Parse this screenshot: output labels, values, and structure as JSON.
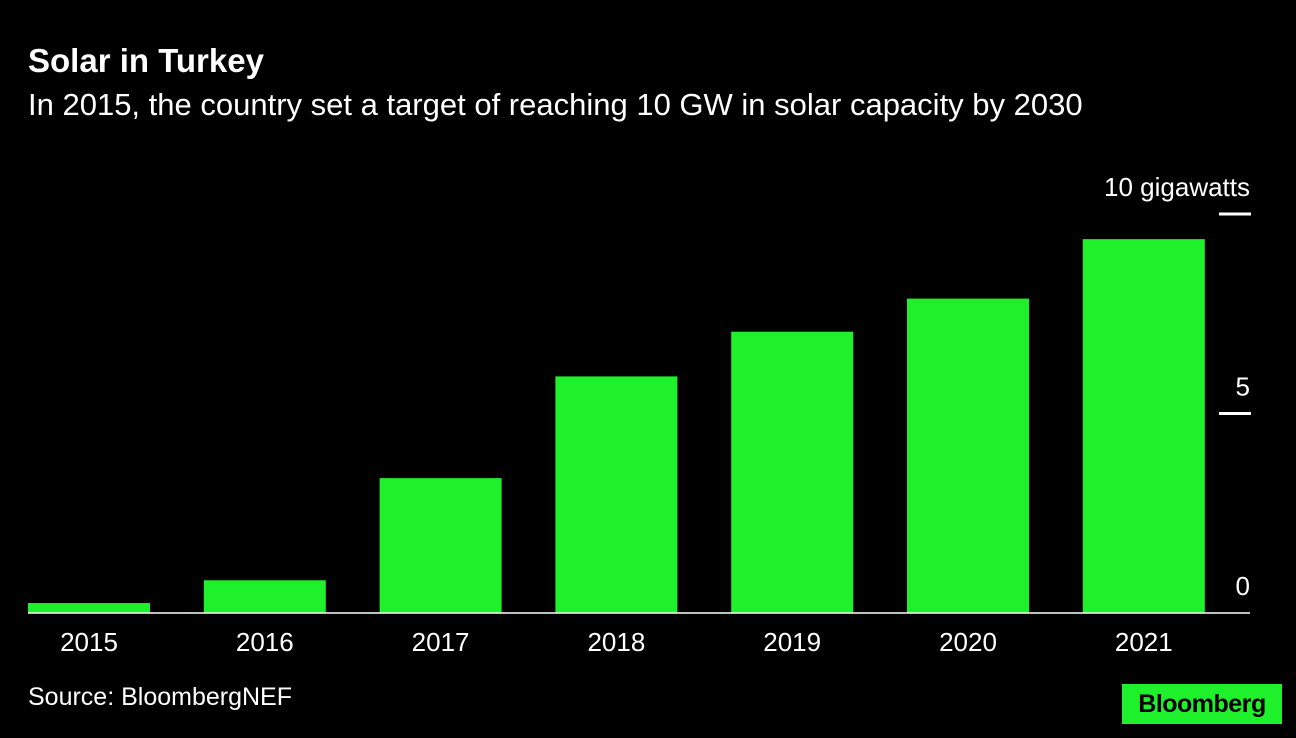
{
  "title": "Solar in Turkey",
  "subtitle": "In 2015, the country set a target of reaching 10 GW in solar capacity by 2030",
  "source": "Source: BloombergNEF",
  "logo": "Bloomberg",
  "colors": {
    "background": "#000000",
    "bar": "#1ef02c",
    "text": "#ffffff"
  },
  "chart_data": {
    "type": "bar",
    "categories": [
      "2015",
      "2016",
      "2017",
      "2018",
      "2019",
      "2020",
      "2021"
    ],
    "values": [
      0.25,
      0.82,
      3.38,
      5.93,
      7.05,
      7.88,
      9.37
    ],
    "ylim": [
      0,
      10
    ],
    "y_ticks": [
      {
        "value": 0,
        "label": "0"
      },
      {
        "value": 5,
        "label": "5"
      },
      {
        "value": 10,
        "label": "10 gigawatts"
      }
    ],
    "y_axis_side": "right",
    "grid": false
  }
}
